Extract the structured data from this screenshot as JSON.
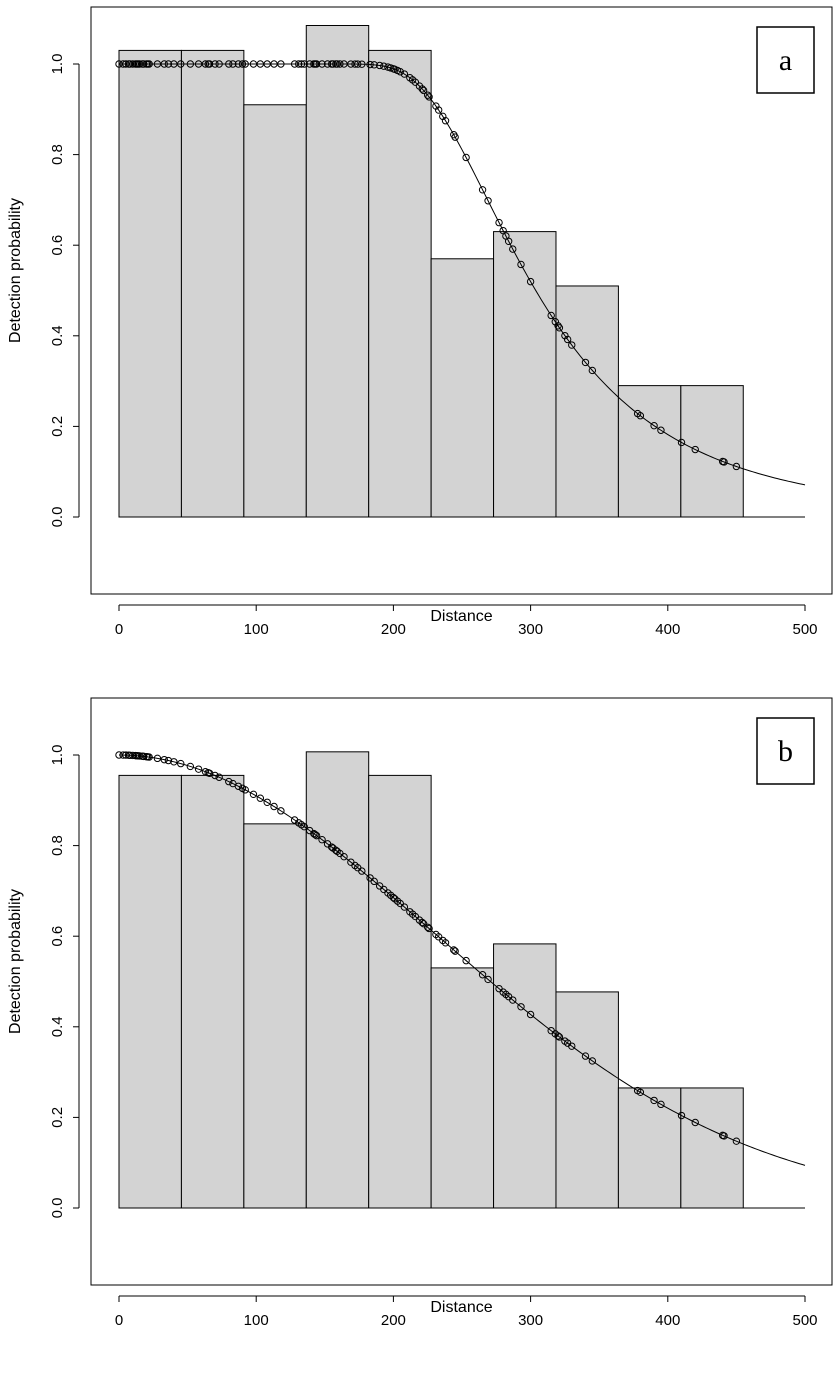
{
  "chart_data": [
    {
      "type": "bar",
      "panel_label": "a",
      "xlabel": "Distance",
      "ylabel": "Detection probability",
      "xlim": [
        0,
        500
      ],
      "ylim": [
        0,
        1.1
      ],
      "x_ticks": [
        0,
        100,
        200,
        300,
        400,
        500
      ],
      "y_ticks": [
        0.0,
        0.2,
        0.4,
        0.6,
        0.8,
        1.0
      ],
      "x_tick_labels": [
        "0",
        "100",
        "200",
        "300",
        "400",
        "500"
      ],
      "y_tick_labels": [
        "0.0",
        "0.2",
        "0.4",
        "0.6",
        "0.8",
        "1.0"
      ],
      "bins": [
        {
          "x0": 0,
          "x1": 45.5,
          "value": 1.03
        },
        {
          "x0": 45.5,
          "x1": 91,
          "value": 1.03
        },
        {
          "x0": 91,
          "x1": 136.5,
          "value": 0.91
        },
        {
          "x0": 136.5,
          "x1": 182,
          "value": 1.085
        },
        {
          "x0": 182,
          "x1": 227.5,
          "value": 1.03
        },
        {
          "x0": 227.5,
          "x1": 273,
          "value": 0.57
        },
        {
          "x0": 273,
          "x1": 318.5,
          "value": 0.63
        },
        {
          "x0": 318.5,
          "x1": 364,
          "value": 0.51
        },
        {
          "x0": 364,
          "x1": 409.5,
          "value": 0.29
        },
        {
          "x0": 409.5,
          "x1": 455,
          "value": 0.29
        }
      ],
      "curve": {
        "model": "hazard-rate",
        "sigma": 280,
        "b": 4.5
      },
      "observed_distances": [
        0,
        3,
        5,
        7,
        8,
        10,
        12,
        13,
        14,
        15,
        17,
        18,
        20,
        21,
        22,
        28,
        33,
        36,
        40,
        45,
        52,
        58,
        63,
        65,
        66,
        70,
        73,
        80,
        83,
        87,
        90,
        92,
        98,
        103,
        108,
        113,
        118,
        128,
        131,
        133,
        135,
        139,
        142,
        143,
        144,
        148,
        152,
        155,
        156,
        158,
        159,
        161,
        164,
        169,
        172,
        174,
        177,
        183,
        186,
        190,
        193,
        196,
        198,
        200,
        201,
        203,
        205,
        208,
        212,
        214,
        216,
        219,
        221,
        222,
        225,
        226,
        231,
        233,
        236,
        238,
        244,
        245,
        253,
        265,
        269,
        277,
        280,
        282,
        284,
        287,
        293,
        300,
        315,
        318,
        320,
        321,
        325,
        327,
        330,
        340,
        345,
        378,
        380,
        390,
        395,
        410,
        420,
        440,
        441,
        450
      ]
    },
    {
      "type": "bar",
      "panel_label": "b",
      "xlabel": "Distance",
      "ylabel": "Detection probability",
      "xlim": [
        0,
        500
      ],
      "ylim": [
        0,
        1.05
      ],
      "x_ticks": [
        0,
        100,
        200,
        300,
        400,
        500
      ],
      "y_ticks": [
        0.0,
        0.2,
        0.4,
        0.6,
        0.8,
        1.0
      ],
      "x_tick_labels": [
        "0",
        "100",
        "200",
        "300",
        "400",
        "500"
      ],
      "y_tick_labels": [
        "0.0",
        "0.2",
        "0.4",
        "0.6",
        "0.8",
        "1.0"
      ],
      "bins": [
        {
          "x0": 0,
          "x1": 45.5,
          "value": 0.955
        },
        {
          "x0": 45.5,
          "x1": 91,
          "value": 0.955
        },
        {
          "x0": 91,
          "x1": 136.5,
          "value": 0.848
        },
        {
          "x0": 136.5,
          "x1": 182,
          "value": 1.007
        },
        {
          "x0": 182,
          "x1": 227.5,
          "value": 0.955
        },
        {
          "x0": 227.5,
          "x1": 273,
          "value": 0.53
        },
        {
          "x0": 273,
          "x1": 318.5,
          "value": 0.583
        },
        {
          "x0": 318.5,
          "x1": 364,
          "value": 0.477
        },
        {
          "x0": 364,
          "x1": 409.5,
          "value": 0.265
        },
        {
          "x0": 409.5,
          "x1": 455,
          "value": 0.265
        }
      ],
      "curve": {
        "model": "half-normal",
        "sigma": 230
      },
      "observed_distances": [
        0,
        3,
        5,
        7,
        8,
        10,
        12,
        13,
        14,
        15,
        17,
        18,
        20,
        21,
        22,
        28,
        33,
        36,
        40,
        45,
        52,
        58,
        63,
        65,
        66,
        70,
        73,
        80,
        83,
        87,
        90,
        92,
        98,
        103,
        108,
        113,
        118,
        128,
        131,
        133,
        135,
        139,
        142,
        143,
        144,
        148,
        152,
        155,
        156,
        158,
        159,
        161,
        164,
        169,
        172,
        174,
        177,
        183,
        186,
        190,
        193,
        196,
        198,
        200,
        201,
        203,
        205,
        208,
        212,
        214,
        216,
        219,
        221,
        222,
        225,
        226,
        231,
        233,
        236,
        238,
        244,
        245,
        253,
        265,
        269,
        277,
        280,
        282,
        284,
        287,
        293,
        300,
        315,
        318,
        320,
        321,
        325,
        327,
        330,
        340,
        345,
        378,
        380,
        390,
        395,
        410,
        420,
        440,
        441,
        450
      ]
    }
  ]
}
